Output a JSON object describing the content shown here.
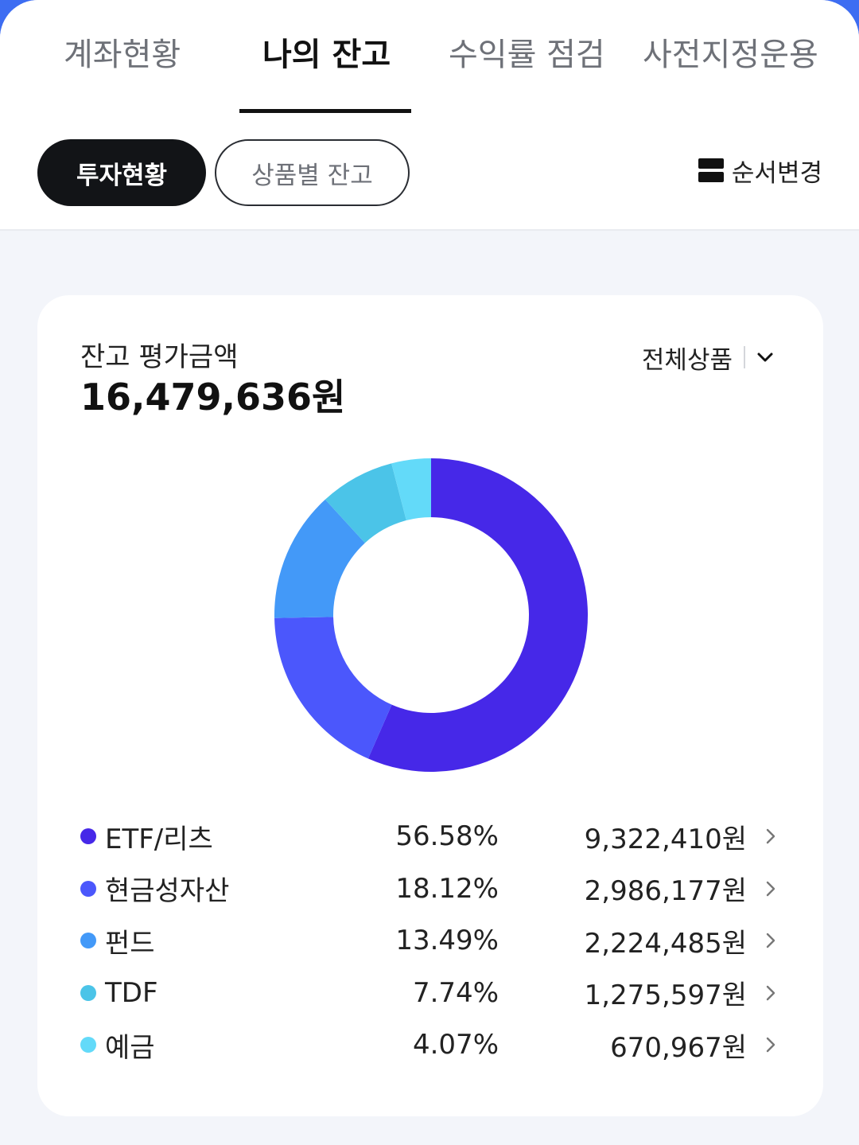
{
  "tabs": [
    {
      "label": "계좌현황",
      "active": false
    },
    {
      "label": "나의 잔고",
      "active": true
    },
    {
      "label": "수익률 점검",
      "active": false
    },
    {
      "label": "사전지정운용",
      "active": false
    }
  ],
  "filters": {
    "investment_label": "투자현황",
    "product_label": "상품별 잔고",
    "reorder_label": "순서변경",
    "reorder_icon": "reorder-icon"
  },
  "summary": {
    "label": "잔고 평가금액",
    "total": "16,479,636원",
    "scope_label": "전체상품",
    "scope_icon": "chevron-down-icon"
  },
  "chart_data": {
    "type": "pie",
    "style": "donut",
    "categories": [
      "ETF/리츠",
      "현금성자산",
      "펀드",
      "TDF",
      "예금"
    ],
    "values": [
      56.58,
      18.12,
      13.49,
      7.74,
      4.07
    ],
    "amounts": [
      9322410,
      2986177,
      2224485,
      1275597,
      670967
    ],
    "colors": [
      "#4628e8",
      "#4b57fc",
      "#4399f8",
      "#4bc4e8",
      "#63daf9"
    ]
  },
  "legend": [
    {
      "name": "ETF/리츠",
      "pct": "56.58%",
      "amount": "9,322,410원",
      "color": "#4628e8"
    },
    {
      "name": "현금성자산",
      "pct": "18.12%",
      "amount": "2,986,177원",
      "color": "#4b57fc"
    },
    {
      "name": "펀드",
      "pct": "13.49%",
      "amount": "2,224,485원",
      "color": "#4399f8"
    },
    {
      "name": "TDF",
      "pct": "7.74%",
      "amount": "1,275,597원",
      "color": "#4bc4e8"
    },
    {
      "name": "예금",
      "pct": "4.07%",
      "amount": "670,967원",
      "color": "#63daf9"
    }
  ]
}
